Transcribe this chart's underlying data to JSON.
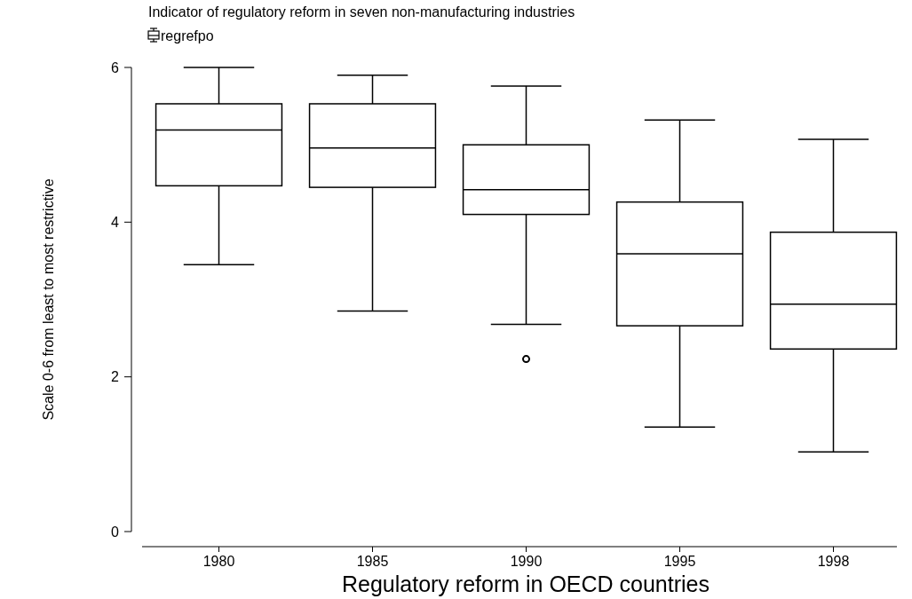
{
  "chart_data": {
    "type": "box",
    "title": "Indicator of regulatory reform in seven non-manufacturing industries",
    "xlabel": "Regulatory reform in OECD countries",
    "ylabel": "Scale 0-6 from least to most restrictive",
    "categories": [
      "1980",
      "1985",
      "1990",
      "1995",
      "1998"
    ],
    "series": [
      {
        "name": "regrefpo",
        "color": "#000000",
        "boxes": [
          {
            "low": 3.45,
            "q1": 4.47,
            "median": 5.19,
            "q3": 5.53,
            "high": 6.0
          },
          {
            "low": 2.85,
            "q1": 4.45,
            "median": 4.96,
            "q3": 5.53,
            "high": 5.9
          },
          {
            "low": 2.68,
            "q1": 4.1,
            "median": 4.42,
            "q3": 5.0,
            "high": 5.76,
            "outliers": [
              2.23
            ]
          },
          {
            "low": 1.35,
            "q1": 2.66,
            "median": 3.59,
            "q3": 4.26,
            "high": 5.32
          },
          {
            "low": 1.03,
            "q1": 2.36,
            "median": 2.94,
            "q3": 3.87,
            "high": 5.07
          }
        ]
      }
    ],
    "ylim": [
      0,
      6
    ],
    "yticks": [
      0,
      2,
      4,
      6
    ],
    "grid": false,
    "legend": "top left"
  }
}
